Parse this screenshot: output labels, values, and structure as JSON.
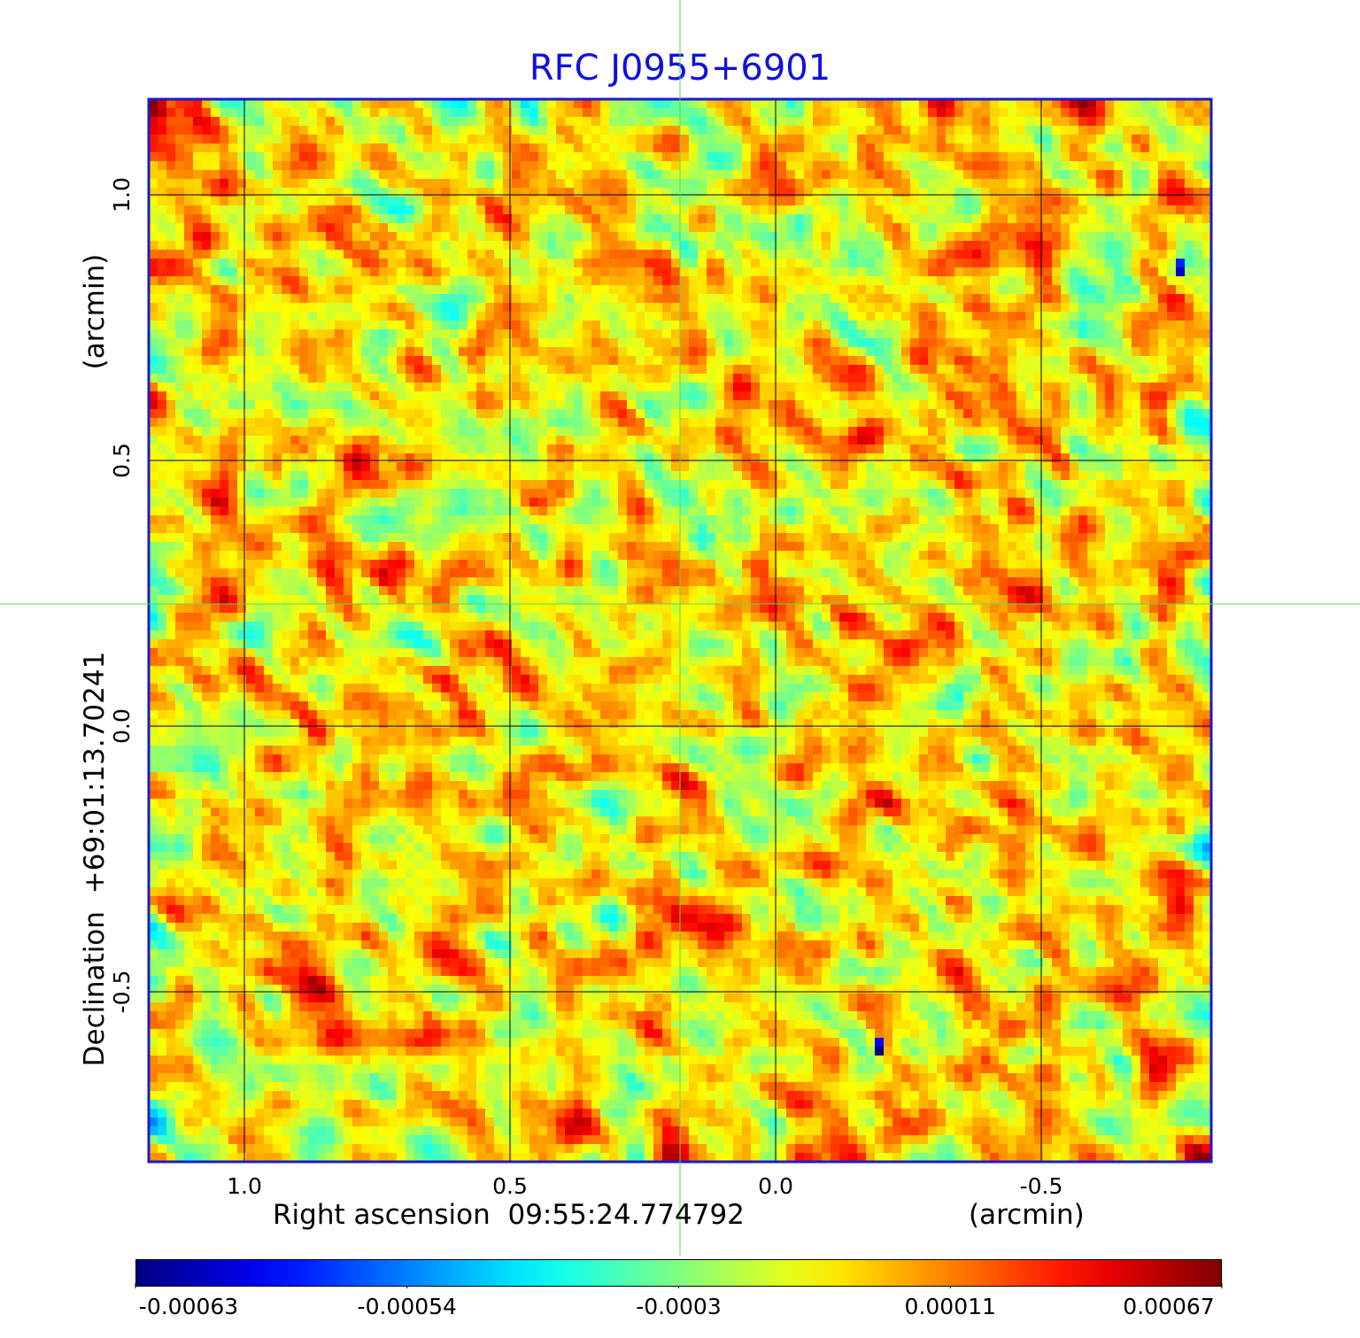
{
  "chart_data": {
    "type": "heatmap",
    "title": "RFC J0955+6901",
    "xlabel": "Right ascension  09:55:24.774792",
    "xunit": "(arcmin)",
    "ylabel": "Declination  +69:01:13.70241",
    "yunit": "(arcmin)",
    "xlim": [
      1.18,
      -0.82
    ],
    "ylim": [
      -0.82,
      1.18
    ],
    "xticks": [
      "1.0",
      "0.5",
      "0.0",
      "-0.5"
    ],
    "yticks": [
      "-0.5",
      "0.0",
      "0.5",
      "1.0"
    ],
    "xtick_values": [
      1.0,
      0.5,
      0.0,
      -0.5
    ],
    "ytick_values": [
      -0.5,
      0.0,
      0.5,
      1.0
    ],
    "grid": true,
    "crosshair": {
      "x": 0.18,
      "y": 0.23,
      "color": "#55dd55"
    },
    "grid_size": [
      120,
      120
    ],
    "noise_color_range": [
      -0.0003,
      0.00067
    ],
    "point_sources": [
      {
        "x": -0.19,
        "y": -0.6,
        "value": -0.00063
      },
      {
        "x": -0.75,
        "y": 0.87,
        "value": -0.00055
      }
    ],
    "colormap": "jet",
    "colorbar": {
      "vmin": -0.00063,
      "vmax": 0.00067,
      "ticks": [
        "-0.00063",
        "-0.00054",
        "-0.0003",
        "0.00011",
        "0.00067"
      ],
      "positions": [
        0.0,
        0.25,
        0.5,
        0.75,
        1.0
      ]
    },
    "frame_color": "#1a1ad0"
  }
}
